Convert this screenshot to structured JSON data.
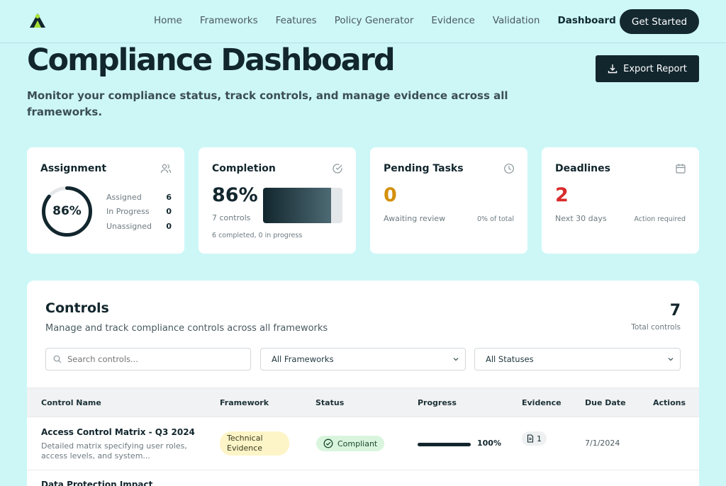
{
  "nav": {
    "links": [
      "Home",
      "Frameworks",
      "Features",
      "Policy Generator",
      "Evidence",
      "Validation",
      "Dashboard"
    ],
    "active": "Dashboard",
    "cta_label": "Get Started"
  },
  "header": {
    "title": "Compliance Dashboard",
    "subtitle": "Monitor your compliance status, track controls, and manage evidence across all frameworks.",
    "export_label": "Export Report"
  },
  "cards": {
    "assignment": {
      "title": "Assignment",
      "percent_label": "86%",
      "percent_value": 0.86,
      "icon": "users-icon",
      "rows": [
        {
          "label": "Assigned",
          "value": "6"
        },
        {
          "label": "In Progress",
          "value": "0"
        },
        {
          "label": "Unassigned",
          "value": "0"
        }
      ]
    },
    "completion": {
      "title": "Completion",
      "icon": "check-circle-icon",
      "percent_label": "86%",
      "percent_value": 0.86,
      "controls_label": "7 controls",
      "detail": "6 completed, 0 in progress"
    },
    "pending": {
      "title": "Pending Tasks",
      "icon": "clock-icon",
      "value": "0",
      "caption": "Awaiting review",
      "note": "0% of total",
      "color": "#d4900a"
    },
    "deadlines": {
      "title": "Deadlines",
      "icon": "calendar-icon",
      "value": "2",
      "caption": "Next 30 days",
      "note": "Action required",
      "color": "#d92b2b"
    }
  },
  "controls": {
    "title": "Controls",
    "description": "Manage and track compliance controls across all frameworks",
    "total_value": "7",
    "total_label": "Total controls",
    "search_placeholder": "Search controls...",
    "framework_filter": "All Frameworks",
    "status_filter": "All Statuses",
    "columns": [
      "Control Name",
      "Framework",
      "Status",
      "Progress",
      "Evidence",
      "Due Date",
      "Actions"
    ],
    "rows": [
      {
        "name": "Access Control Matrix - Q3 2024",
        "description": "Detailed matrix specifying user roles, access levels, and system...",
        "framework": "Technical Evidence",
        "status": "Compliant",
        "progress_label": "100%",
        "progress_value": 1.0,
        "evidence": "1",
        "due_date": "7/1/2024"
      },
      {
        "name": "Data Protection Impact"
      }
    ]
  },
  "colors": {
    "background": "#cdf7f7",
    "primary": "#12262d",
    "pending": "#d4900a",
    "deadline": "#d92b2b",
    "compliant_badge": "#d9f5dd",
    "framework_badge": "#fdf5c8"
  }
}
